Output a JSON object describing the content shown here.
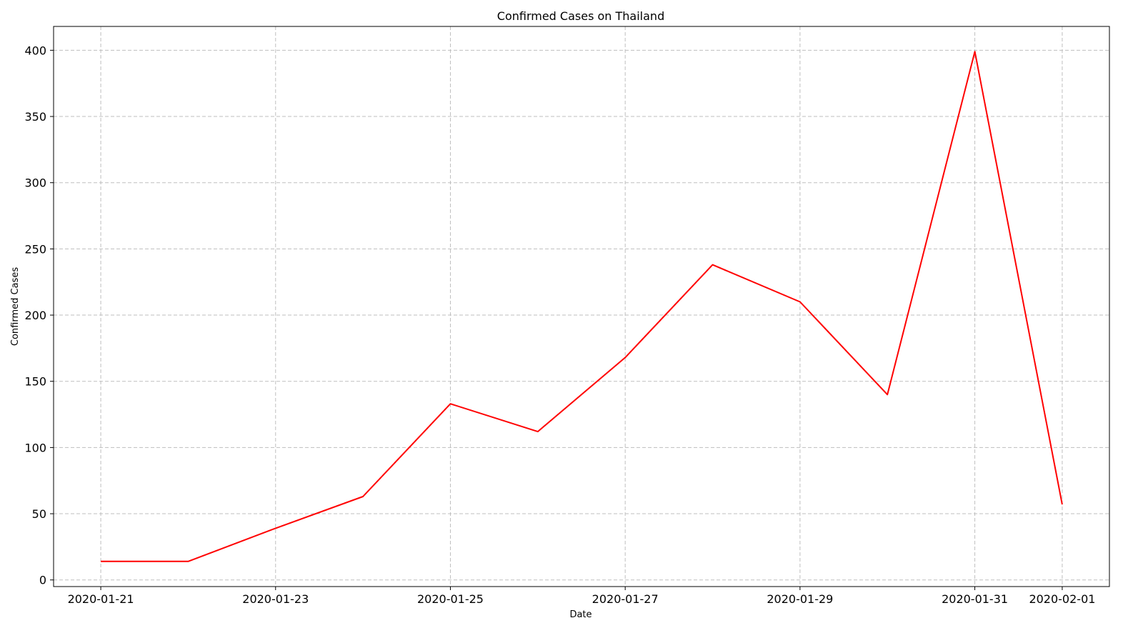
{
  "chart_data": {
    "type": "line",
    "title": "Confirmed Cases on Thailand",
    "xlabel": "Date",
    "ylabel": "Confirmed Cases",
    "x": [
      "2020-01-21",
      "2020-01-22",
      "2020-01-23",
      "2020-01-24",
      "2020-01-25",
      "2020-01-26",
      "2020-01-27",
      "2020-01-28",
      "2020-01-29",
      "2020-01-30",
      "2020-01-31",
      "2020-02-01"
    ],
    "series": [
      {
        "color": "#ff0000",
        "values": [
          14,
          14,
          39,
          63,
          133,
          112,
          168,
          238,
          210,
          140,
          399,
          57
        ]
      }
    ],
    "x_tick_labels": [
      "2020-01-21",
      "2020-01-23",
      "2020-01-25",
      "2020-01-27",
      "2020-01-29",
      "2020-01-31",
      "2020-02-01"
    ],
    "y_ticks": [
      0,
      50,
      100,
      150,
      200,
      250,
      300,
      350,
      400
    ],
    "xlim": [
      "2020-01-20",
      "2020-02-01"
    ],
    "ylim": [
      -5,
      418
    ],
    "grid": true,
    "legend": "none"
  }
}
